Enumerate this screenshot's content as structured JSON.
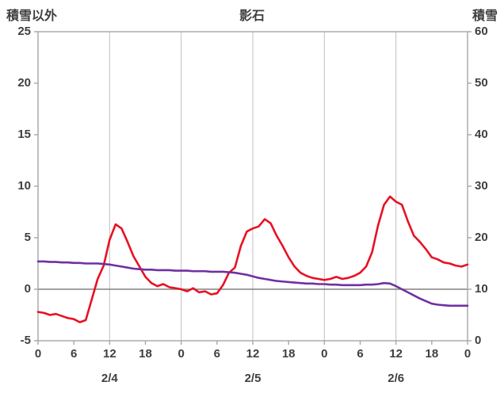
{
  "header": {
    "left_axis_title": "積雪以外",
    "chart_title": "影石",
    "right_axis_title": "積雪"
  },
  "colors": {
    "text": "#3f3f3f",
    "plot_border": "#a6a6a6",
    "gridline": "#bfbfbf",
    "zero_line": "#808080",
    "red_series": "#e81123",
    "purple_series": "#7030a0"
  },
  "chart_data": {
    "type": "line",
    "title": "影石",
    "left_axis": {
      "label": "積雪以外",
      "min": -5,
      "max": 25,
      "tick_labels": [
        "25",
        "20",
        "15",
        "10",
        "5",
        "0",
        "-5"
      ],
      "tick_values": [
        25,
        20,
        15,
        10,
        5,
        0,
        -5
      ]
    },
    "right_axis": {
      "label": "積雪",
      "min": 0,
      "max": 60,
      "tick_labels": [
        "60",
        "50",
        "40",
        "30",
        "20",
        "10",
        "0"
      ],
      "tick_values": [
        60,
        50,
        40,
        30,
        20,
        10,
        0
      ]
    },
    "x_axis": {
      "hours_span": 72,
      "tick_interval": 6,
      "tick_labels": [
        "0",
        "6",
        "12",
        "18",
        "0",
        "6",
        "12",
        "18",
        "0",
        "6",
        "12",
        "18",
        "0"
      ],
      "day_labels": [
        "2/4",
        "2/5",
        "2/6"
      ],
      "gridline_hours": [
        12,
        24,
        36,
        48,
        60
      ],
      "zero_reference_left_value": 0
    },
    "series": [
      {
        "name": "red-line",
        "axis": "left",
        "color": "#e81123",
        "x_hours": [
          0,
          1,
          2,
          3,
          4,
          5,
          6,
          7,
          8,
          9,
          10,
          11,
          12,
          13,
          14,
          15,
          16,
          17,
          18,
          19,
          20,
          21,
          22,
          23,
          24,
          25,
          26,
          27,
          28,
          29,
          30,
          31,
          32,
          33,
          34,
          35,
          36,
          37,
          38,
          39,
          40,
          41,
          42,
          43,
          44,
          45,
          46,
          47,
          48,
          49,
          50,
          51,
          52,
          53,
          54,
          55,
          56,
          57,
          58,
          59,
          60,
          61,
          62,
          63,
          64,
          65,
          66,
          67,
          68,
          69,
          70,
          71,
          72
        ],
        "values": [
          -2.2,
          -2.3,
          -2.5,
          -2.4,
          -2.6,
          -2.8,
          -2.9,
          -3.2,
          -3.0,
          -1.0,
          1.0,
          2.3,
          4.8,
          6.3,
          5.9,
          4.6,
          3.2,
          2.2,
          1.2,
          0.6,
          0.3,
          0.5,
          0.2,
          0.1,
          0.0,
          -0.2,
          0.1,
          -0.3,
          -0.2,
          -0.5,
          -0.4,
          0.4,
          1.6,
          2.1,
          4.2,
          5.6,
          5.9,
          6.1,
          6.8,
          6.4,
          5.2,
          4.2,
          3.1,
          2.2,
          1.6,
          1.3,
          1.1,
          1.0,
          0.9,
          1.0,
          1.2,
          1.0,
          1.1,
          1.3,
          1.6,
          2.2,
          3.6,
          6.2,
          8.2,
          9.0,
          8.5,
          8.2,
          6.6,
          5.2,
          4.6,
          3.9,
          3.1,
          2.9,
          2.6,
          2.5,
          2.3,
          2.2,
          2.4
        ]
      },
      {
        "name": "purple-line",
        "axis": "right",
        "color": "#7030a0",
        "x_hours": [
          0,
          1,
          2,
          3,
          4,
          5,
          6,
          7,
          8,
          9,
          10,
          11,
          12,
          13,
          14,
          15,
          16,
          17,
          18,
          19,
          20,
          21,
          22,
          23,
          24,
          25,
          26,
          27,
          28,
          29,
          30,
          31,
          32,
          33,
          34,
          35,
          36,
          37,
          38,
          39,
          40,
          41,
          42,
          43,
          44,
          45,
          46,
          47,
          48,
          49,
          50,
          51,
          52,
          53,
          54,
          55,
          56,
          57,
          58,
          59,
          60,
          61,
          62,
          63,
          64,
          65,
          66,
          67,
          68,
          69,
          70,
          71,
          72
        ],
        "values": [
          15.4,
          15.4,
          15.3,
          15.3,
          15.2,
          15.2,
          15.1,
          15.1,
          15.0,
          15.0,
          15.0,
          14.9,
          14.8,
          14.6,
          14.4,
          14.2,
          14.0,
          13.9,
          13.8,
          13.8,
          13.7,
          13.7,
          13.7,
          13.6,
          13.6,
          13.6,
          13.5,
          13.5,
          13.5,
          13.4,
          13.4,
          13.4,
          13.3,
          13.2,
          13.0,
          12.8,
          12.5,
          12.2,
          12.0,
          11.8,
          11.6,
          11.5,
          11.4,
          11.3,
          11.2,
          11.1,
          11.1,
          11.0,
          11.0,
          10.9,
          10.9,
          10.8,
          10.8,
          10.8,
          10.8,
          10.9,
          10.9,
          11.0,
          11.2,
          11.1,
          10.6,
          10.0,
          9.4,
          8.8,
          8.2,
          7.7,
          7.2,
          7.0,
          6.9,
          6.8,
          6.8,
          6.8,
          6.8
        ]
      }
    ],
    "legend": "none",
    "grid": "vertical-12h-only"
  }
}
